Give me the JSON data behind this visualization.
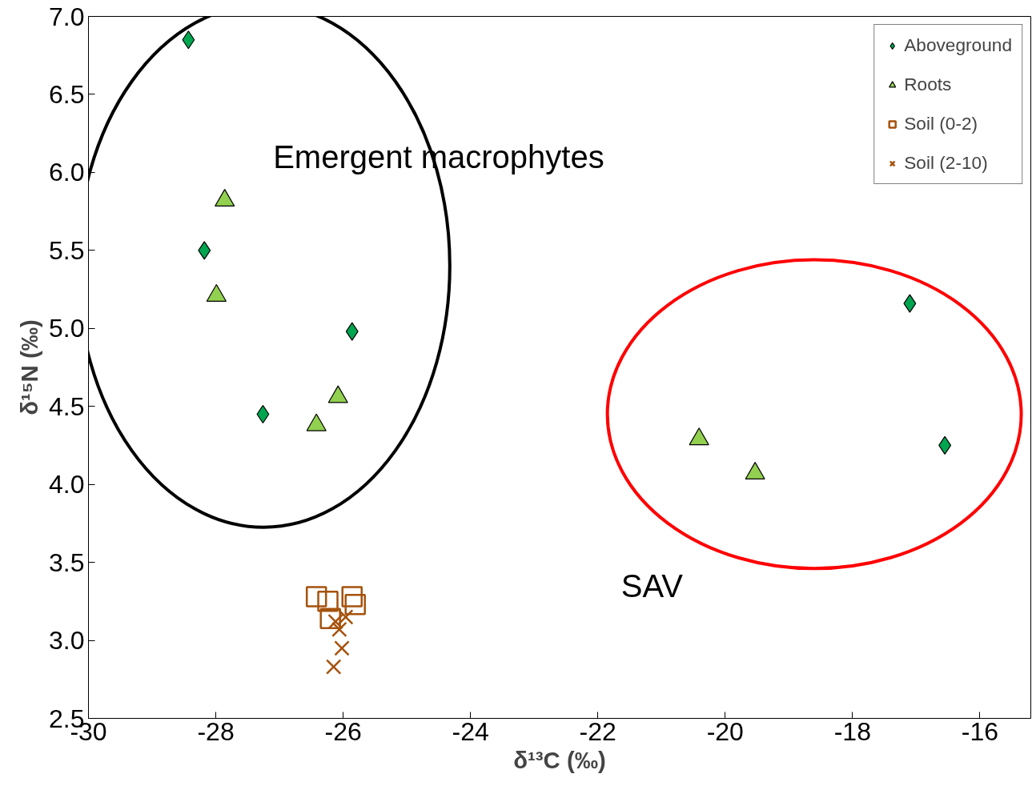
{
  "chart_data": {
    "type": "scatter",
    "xlabel": "δ¹³C (‰)",
    "ylabel": "δ¹⁵N (‰)",
    "xlim": [
      -30,
      -15.2
    ],
    "xticks": [
      -30,
      -28,
      -26,
      -24,
      -22,
      -20,
      -18,
      -16
    ],
    "ylim": [
      2.5,
      7.0
    ],
    "yticks": [
      {
        "value": 2.5,
        "label": "2.5"
      },
      {
        "value": 3.0,
        "label": "3.0"
      },
      {
        "value": 3.5,
        "label": "3.5"
      },
      {
        "value": 4.0,
        "label": "4.0"
      },
      {
        "value": 4.5,
        "label": "4.5"
      },
      {
        "value": 5.0,
        "label": "5.0"
      },
      {
        "value": 5.5,
        "label": "5.5"
      },
      {
        "value": 6.0,
        "label": "6.0"
      },
      {
        "value": 6.5,
        "label": "6.5"
      },
      {
        "value": 7.0,
        "label": "7.0"
      }
    ],
    "grid": false,
    "legend": "top right",
    "series": [
      {
        "name": "Aboveground",
        "color": "#00a550",
        "marker": "diamond",
        "x": [
          -28.43,
          -28.18,
          -25.86,
          -27.26,
          -17.1,
          -16.55
        ],
        "values": [
          6.85,
          5.5,
          4.98,
          4.45,
          5.16,
          4.25
        ]
      },
      {
        "name": "Roots",
        "color": "#92d050",
        "marker": "triangle",
        "x": [
          -27.86,
          -27.99,
          -26.08,
          -26.42,
          -20.41,
          -19.53
        ],
        "values": [
          5.82,
          5.21,
          4.56,
          4.38,
          4.29,
          4.07
        ]
      },
      {
        "name": "Soil (0-2)",
        "color": "#a5520d",
        "marker": "square",
        "x": [
          -26.42,
          -26.24,
          -25.86,
          -25.81,
          -26.2
        ],
        "values": [
          3.28,
          3.25,
          3.28,
          3.23,
          3.14
        ]
      },
      {
        "name": "Soil (2-10)",
        "color": "#a5520d",
        "marker": "cross",
        "x": [
          -25.96,
          -26.12,
          -26.06,
          -26.02,
          -26.15
        ],
        "values": [
          3.15,
          3.12,
          3.07,
          2.95,
          2.83
        ]
      }
    ],
    "annotations": [
      "Emergent macrophytes",
      "SAV"
    ]
  }
}
